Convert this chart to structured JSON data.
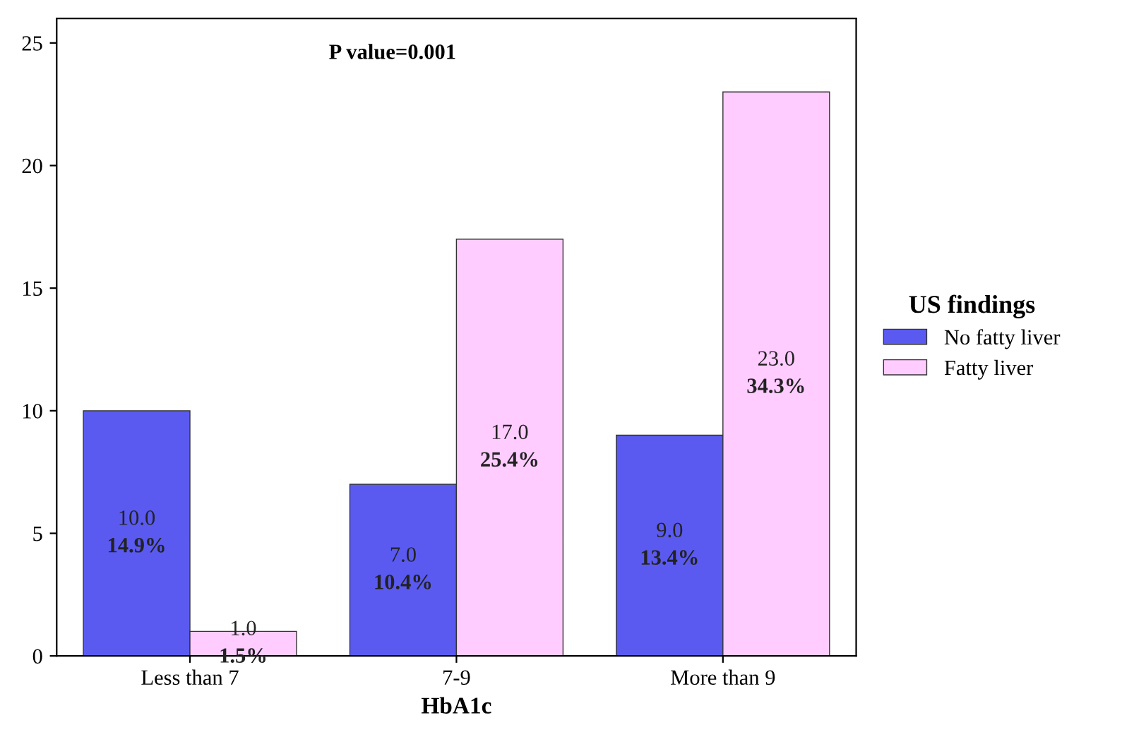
{
  "chart_data": {
    "type": "bar",
    "xlabel": "HbA1c",
    "legend_title": "US findings",
    "legend": "right",
    "grid": false,
    "categories": [
      "Less than 7",
      "7-9",
      "More than 9"
    ],
    "series": [
      {
        "name": "No fatty liver",
        "color": "#5a5af0",
        "values": [
          10.0,
          7.0,
          9.0
        ],
        "value_labels": [
          "10.0\n14.9%",
          "7.0\n10.4%",
          "9.0\n13.4%"
        ]
      },
      {
        "name": "Fatty liver",
        "color": "#ffccff",
        "values": [
          1.0,
          17.0,
          23.0
        ],
        "value_labels": [
          "1.0\n1.5%",
          "17.0\n25.4%",
          "23.0\n34.3%"
        ]
      }
    ],
    "ylim": [
      0,
      26
    ],
    "yticks": [
      0,
      5,
      10,
      15,
      20,
      25
    ],
    "annotations": [
      "P value=0.001"
    ]
  }
}
